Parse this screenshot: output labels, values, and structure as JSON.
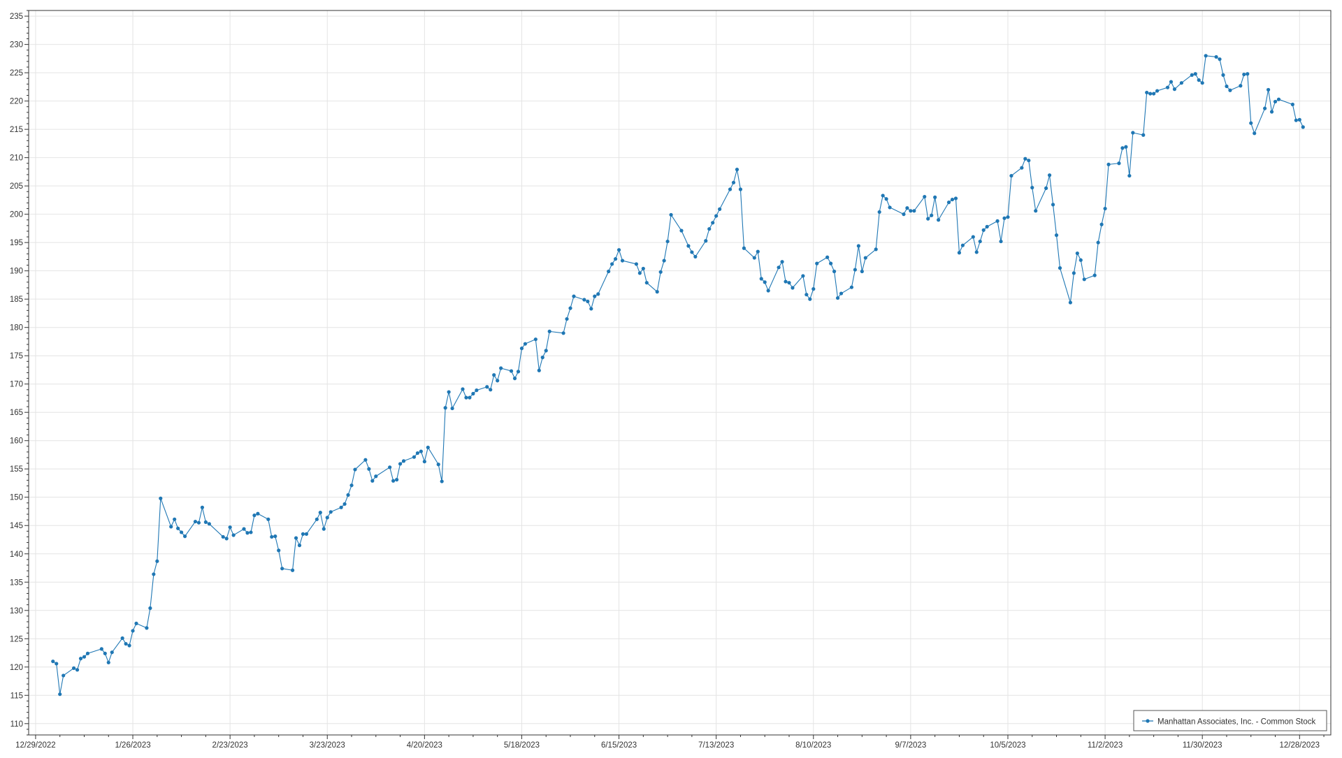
{
  "chart_data": {
    "type": "line",
    "title": "",
    "xlabel": "",
    "ylabel": "",
    "xlim": [
      "2022-12-27",
      "2024-01-06"
    ],
    "ylim": [
      108,
      236
    ],
    "x_tick_labels": [
      "12/29/2022",
      "1/26/2023",
      "2/23/2023",
      "3/23/2023",
      "4/20/2023",
      "5/18/2023",
      "6/15/2023",
      "7/13/2023",
      "8/10/2023",
      "9/7/2023",
      "10/5/2023",
      "11/2/2023",
      "11/30/2023",
      "12/28/2023"
    ],
    "y_tick_labels": [
      "110",
      "115",
      "120",
      "125",
      "130",
      "135",
      "140",
      "145",
      "150",
      "155",
      "160",
      "165",
      "170",
      "175",
      "180",
      "185",
      "190",
      "195",
      "200",
      "205",
      "210",
      "215",
      "220",
      "225",
      "230",
      "235"
    ],
    "grid": true,
    "legend_position": "bottom-right",
    "series": [
      {
        "name": "Manhattan Associates, Inc. - Common Stock",
        "color": "#1f77b4",
        "points": [
          [
            "2023-01-03",
            121.0
          ],
          [
            "2023-01-04",
            120.6
          ],
          [
            "2023-01-05",
            115.2
          ],
          [
            "2023-01-06",
            118.5
          ],
          [
            "2023-01-09",
            119.8
          ],
          [
            "2023-01-10",
            119.5
          ],
          [
            "2023-01-11",
            121.5
          ],
          [
            "2023-01-12",
            121.8
          ],
          [
            "2023-01-13",
            122.4
          ],
          [
            "2023-01-17",
            123.2
          ],
          [
            "2023-01-18",
            122.4
          ],
          [
            "2023-01-19",
            120.8
          ],
          [
            "2023-01-20",
            122.6
          ],
          [
            "2023-01-23",
            125.1
          ],
          [
            "2023-01-24",
            124.1
          ],
          [
            "2023-01-25",
            123.8
          ],
          [
            "2023-01-26",
            126.4
          ],
          [
            "2023-01-27",
            127.7
          ],
          [
            "2023-01-30",
            126.9
          ],
          [
            "2023-01-31",
            130.4
          ],
          [
            "2023-02-01",
            136.4
          ],
          [
            "2023-02-02",
            138.7
          ],
          [
            "2023-02-03",
            149.8
          ],
          [
            "2023-02-06",
            144.8
          ],
          [
            "2023-02-07",
            146.1
          ],
          [
            "2023-02-08",
            144.5
          ],
          [
            "2023-02-09",
            143.8
          ],
          [
            "2023-02-10",
            143.1
          ],
          [
            "2023-02-13",
            145.7
          ],
          [
            "2023-02-14",
            145.5
          ],
          [
            "2023-02-15",
            148.2
          ],
          [
            "2023-02-16",
            145.6
          ],
          [
            "2023-02-17",
            145.3
          ],
          [
            "2023-02-21",
            143.0
          ],
          [
            "2023-02-22",
            142.7
          ],
          [
            "2023-02-23",
            144.7
          ],
          [
            "2023-02-24",
            143.3
          ],
          [
            "2023-02-27",
            144.4
          ],
          [
            "2023-02-28",
            143.7
          ],
          [
            "2023-03-01",
            143.8
          ],
          [
            "2023-03-02",
            146.8
          ],
          [
            "2023-03-03",
            147.1
          ],
          [
            "2023-03-06",
            146.1
          ],
          [
            "2023-03-07",
            143.0
          ],
          [
            "2023-03-08",
            143.1
          ],
          [
            "2023-03-09",
            140.6
          ],
          [
            "2023-03-10",
            137.4
          ],
          [
            "2023-03-13",
            137.1
          ],
          [
            "2023-03-14",
            142.8
          ],
          [
            "2023-03-15",
            141.5
          ],
          [
            "2023-03-16",
            143.5
          ],
          [
            "2023-03-17",
            143.5
          ],
          [
            "2023-03-20",
            146.1
          ],
          [
            "2023-03-21",
            147.3
          ],
          [
            "2023-03-22",
            144.4
          ],
          [
            "2023-03-23",
            146.4
          ],
          [
            "2023-03-24",
            147.4
          ],
          [
            "2023-03-27",
            148.2
          ],
          [
            "2023-03-28",
            148.8
          ],
          [
            "2023-03-29",
            150.4
          ],
          [
            "2023-03-30",
            152.1
          ],
          [
            "2023-03-31",
            154.9
          ],
          [
            "2023-04-03",
            156.6
          ],
          [
            "2023-04-04",
            155.0
          ],
          [
            "2023-04-05",
            152.9
          ],
          [
            "2023-04-06",
            153.7
          ],
          [
            "2023-04-10",
            155.3
          ],
          [
            "2023-04-11",
            152.9
          ],
          [
            "2023-04-12",
            153.1
          ],
          [
            "2023-04-13",
            155.9
          ],
          [
            "2023-04-14",
            156.4
          ],
          [
            "2023-04-17",
            157.1
          ],
          [
            "2023-04-18",
            157.8
          ],
          [
            "2023-04-19",
            158.1
          ],
          [
            "2023-04-20",
            156.3
          ],
          [
            "2023-04-21",
            158.8
          ],
          [
            "2023-04-24",
            155.8
          ],
          [
            "2023-04-25",
            152.8
          ],
          [
            "2023-04-26",
            165.8
          ],
          [
            "2023-04-27",
            168.6
          ],
          [
            "2023-04-28",
            165.7
          ],
          [
            "2023-05-01",
            169.1
          ],
          [
            "2023-05-02",
            167.6
          ],
          [
            "2023-05-03",
            167.6
          ],
          [
            "2023-05-04",
            168.3
          ],
          [
            "2023-05-05",
            168.9
          ],
          [
            "2023-05-08",
            169.5
          ],
          [
            "2023-05-09",
            169.0
          ],
          [
            "2023-05-10",
            171.6
          ],
          [
            "2023-05-11",
            170.6
          ],
          [
            "2023-05-12",
            172.8
          ],
          [
            "2023-05-15",
            172.3
          ],
          [
            "2023-05-16",
            171.0
          ],
          [
            "2023-05-17",
            172.2
          ],
          [
            "2023-05-18",
            176.3
          ],
          [
            "2023-05-19",
            177.1
          ],
          [
            "2023-05-22",
            177.9
          ],
          [
            "2023-05-23",
            172.4
          ],
          [
            "2023-05-24",
            174.7
          ],
          [
            "2023-05-25",
            175.9
          ],
          [
            "2023-05-26",
            179.3
          ],
          [
            "2023-05-30",
            179.0
          ],
          [
            "2023-05-31",
            181.5
          ],
          [
            "2023-06-01",
            183.4
          ],
          [
            "2023-06-02",
            185.5
          ],
          [
            "2023-06-05",
            184.9
          ],
          [
            "2023-06-06",
            184.6
          ],
          [
            "2023-06-07",
            183.3
          ],
          [
            "2023-06-08",
            185.5
          ],
          [
            "2023-06-09",
            185.9
          ],
          [
            "2023-06-12",
            189.9
          ],
          [
            "2023-06-13",
            191.2
          ],
          [
            "2023-06-14",
            192.1
          ],
          [
            "2023-06-15",
            193.7
          ],
          [
            "2023-06-16",
            191.8
          ],
          [
            "2023-06-20",
            191.2
          ],
          [
            "2023-06-21",
            189.6
          ],
          [
            "2023-06-22",
            190.4
          ],
          [
            "2023-06-23",
            187.9
          ],
          [
            "2023-06-26",
            186.3
          ],
          [
            "2023-06-27",
            189.8
          ],
          [
            "2023-06-28",
            191.8
          ],
          [
            "2023-06-29",
            195.2
          ],
          [
            "2023-06-30",
            199.9
          ],
          [
            "2023-07-03",
            197.1
          ],
          [
            "2023-07-05",
            194.4
          ],
          [
            "2023-07-06",
            193.3
          ],
          [
            "2023-07-07",
            192.5
          ],
          [
            "2023-07-10",
            195.3
          ],
          [
            "2023-07-11",
            197.4
          ],
          [
            "2023-07-12",
            198.5
          ],
          [
            "2023-07-13",
            199.7
          ],
          [
            "2023-07-14",
            200.9
          ],
          [
            "2023-07-17",
            204.4
          ],
          [
            "2023-07-18",
            205.6
          ],
          [
            "2023-07-19",
            207.9
          ],
          [
            "2023-07-20",
            204.4
          ],
          [
            "2023-07-21",
            194.0
          ],
          [
            "2023-07-24",
            192.3
          ],
          [
            "2023-07-25",
            193.4
          ],
          [
            "2023-07-26",
            188.6
          ],
          [
            "2023-07-27",
            188.0
          ],
          [
            "2023-07-28",
            186.5
          ],
          [
            "2023-07-31",
            190.6
          ],
          [
            "2023-08-01",
            191.6
          ],
          [
            "2023-08-02",
            188.1
          ],
          [
            "2023-08-03",
            187.9
          ],
          [
            "2023-08-04",
            187.0
          ],
          [
            "2023-08-07",
            189.1
          ],
          [
            "2023-08-08",
            185.8
          ],
          [
            "2023-08-09",
            185.0
          ],
          [
            "2023-08-10",
            186.8
          ],
          [
            "2023-08-11",
            191.3
          ],
          [
            "2023-08-14",
            192.4
          ],
          [
            "2023-08-15",
            191.3
          ],
          [
            "2023-08-16",
            189.9
          ],
          [
            "2023-08-17",
            185.2
          ],
          [
            "2023-08-18",
            186.0
          ],
          [
            "2023-08-21",
            187.1
          ],
          [
            "2023-08-22",
            190.2
          ],
          [
            "2023-08-23",
            194.4
          ],
          [
            "2023-08-24",
            189.9
          ],
          [
            "2023-08-25",
            192.3
          ],
          [
            "2023-08-28",
            193.8
          ],
          [
            "2023-08-29",
            200.4
          ],
          [
            "2023-08-30",
            203.3
          ],
          [
            "2023-08-31",
            202.7
          ],
          [
            "2023-09-01",
            201.2
          ],
          [
            "2023-09-05",
            200.0
          ],
          [
            "2023-09-06",
            201.1
          ],
          [
            "2023-09-07",
            200.6
          ],
          [
            "2023-09-08",
            200.6
          ],
          [
            "2023-09-11",
            203.1
          ],
          [
            "2023-09-12",
            199.2
          ],
          [
            "2023-09-13",
            199.8
          ],
          [
            "2023-09-14",
            203.0
          ],
          [
            "2023-09-15",
            199.0
          ],
          [
            "2023-09-18",
            202.1
          ],
          [
            "2023-09-19",
            202.6
          ],
          [
            "2023-09-20",
            202.8
          ],
          [
            "2023-09-21",
            193.2
          ],
          [
            "2023-09-22",
            194.5
          ],
          [
            "2023-09-25",
            196.0
          ],
          [
            "2023-09-26",
            193.3
          ],
          [
            "2023-09-27",
            195.2
          ],
          [
            "2023-09-28",
            197.2
          ],
          [
            "2023-09-29",
            197.8
          ],
          [
            "2023-10-02",
            198.8
          ],
          [
            "2023-10-03",
            195.2
          ],
          [
            "2023-10-04",
            199.3
          ],
          [
            "2023-10-05",
            199.5
          ],
          [
            "2023-10-06",
            206.8
          ],
          [
            "2023-10-09",
            208.2
          ],
          [
            "2023-10-10",
            209.8
          ],
          [
            "2023-10-11",
            209.5
          ],
          [
            "2023-10-12",
            204.7
          ],
          [
            "2023-10-13",
            200.6
          ],
          [
            "2023-10-16",
            204.6
          ],
          [
            "2023-10-17",
            206.9
          ],
          [
            "2023-10-18",
            201.7
          ],
          [
            "2023-10-19",
            196.3
          ],
          [
            "2023-10-20",
            190.5
          ],
          [
            "2023-10-23",
            184.4
          ],
          [
            "2023-10-24",
            189.6
          ],
          [
            "2023-10-25",
            193.1
          ],
          [
            "2023-10-26",
            191.9
          ],
          [
            "2023-10-27",
            188.5
          ],
          [
            "2023-10-30",
            189.2
          ],
          [
            "2023-10-31",
            195.0
          ],
          [
            "2023-11-01",
            198.2
          ],
          [
            "2023-11-02",
            201.0
          ],
          [
            "2023-11-03",
            208.8
          ],
          [
            "2023-11-06",
            209.0
          ],
          [
            "2023-11-07",
            211.7
          ],
          [
            "2023-11-08",
            211.9
          ],
          [
            "2023-11-09",
            206.8
          ],
          [
            "2023-11-10",
            214.4
          ],
          [
            "2023-11-13",
            214.0
          ],
          [
            "2023-11-14",
            221.5
          ],
          [
            "2023-11-15",
            221.3
          ],
          [
            "2023-11-16",
            221.3
          ],
          [
            "2023-11-17",
            221.8
          ],
          [
            "2023-11-20",
            222.4
          ],
          [
            "2023-11-21",
            223.4
          ],
          [
            "2023-11-22",
            222.1
          ],
          [
            "2023-11-24",
            223.2
          ],
          [
            "2023-11-27",
            224.6
          ],
          [
            "2023-11-28",
            224.8
          ],
          [
            "2023-11-29",
            223.7
          ],
          [
            "2023-11-30",
            223.2
          ],
          [
            "2023-12-01",
            228.0
          ],
          [
            "2023-12-04",
            227.8
          ],
          [
            "2023-12-05",
            227.4
          ],
          [
            "2023-12-06",
            224.6
          ],
          [
            "2023-12-07",
            222.6
          ],
          [
            "2023-12-08",
            221.9
          ],
          [
            "2023-12-11",
            222.7
          ],
          [
            "2023-12-12",
            224.7
          ],
          [
            "2023-12-13",
            224.8
          ],
          [
            "2023-12-14",
            216.1
          ],
          [
            "2023-12-15",
            214.3
          ],
          [
            "2023-12-18",
            218.7
          ],
          [
            "2023-12-19",
            222.0
          ],
          [
            "2023-12-20",
            218.1
          ],
          [
            "2023-12-21",
            219.9
          ],
          [
            "2023-12-22",
            220.3
          ],
          [
            "2023-12-26",
            219.4
          ],
          [
            "2023-12-27",
            216.6
          ],
          [
            "2023-12-28",
            216.7
          ],
          [
            "2023-12-29",
            215.4
          ]
        ]
      }
    ]
  }
}
